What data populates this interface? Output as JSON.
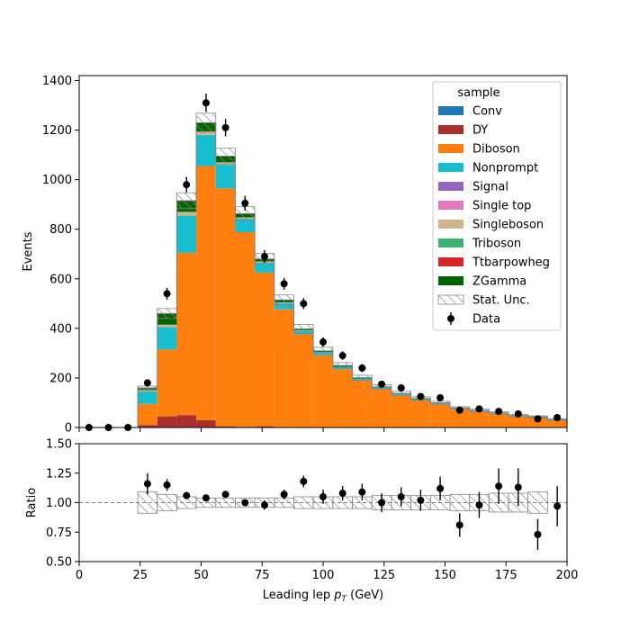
{
  "chart_data": [
    {
      "type": "stacked-histogram",
      "role": "main",
      "ylabel": "Events",
      "xlim": [
        0,
        200
      ],
      "ylim": [
        0,
        1420
      ],
      "x_ticks": [
        0,
        25,
        50,
        75,
        100,
        125,
        150,
        175,
        200
      ],
      "y_ticks": [
        0,
        200,
        400,
        600,
        800,
        1000,
        1200,
        1400
      ],
      "bin_edges": [
        0,
        8,
        16,
        24,
        32,
        40,
        48,
        56,
        64,
        72,
        80,
        88,
        96,
        104,
        112,
        120,
        128,
        136,
        144,
        152,
        160,
        168,
        176,
        184,
        192,
        200
      ],
      "legend": {
        "title": "sample",
        "position": "top-right"
      },
      "stack": [
        {
          "name": "Conv",
          "color": "#1f77b4",
          "values": [
            0,
            0,
            0,
            0,
            0,
            0,
            0,
            0,
            0,
            0,
            0,
            0,
            0,
            0,
            0,
            0,
            0,
            0,
            0,
            0,
            0,
            0,
            0,
            0,
            0
          ]
        },
        {
          "name": "DY",
          "color": "#aa2e2e",
          "values": [
            0,
            0,
            0,
            10,
            45,
            50,
            30,
            5,
            3,
            5,
            2,
            1,
            1,
            0,
            0,
            0,
            0,
            0,
            0,
            0,
            0,
            0,
            0,
            0,
            0
          ]
        },
        {
          "name": "Diboson",
          "color": "#ff7f0e",
          "values": [
            0,
            0,
            0,
            85,
            270,
            655,
            1025,
            960,
            785,
            620,
            475,
            375,
            290,
            235,
            190,
            155,
            130,
            110,
            95,
            75,
            65,
            55,
            45,
            40,
            30
          ]
        },
        {
          "name": "Nonprompt",
          "color": "#17becf",
          "values": [
            0,
            0,
            0,
            50,
            90,
            150,
            125,
            95,
            55,
            40,
            25,
            15,
            12,
            10,
            8,
            7,
            6,
            5,
            4,
            3,
            3,
            3,
            2,
            2,
            2
          ]
        },
        {
          "name": "Signal",
          "color": "#9467bd",
          "values": [
            0,
            0,
            0,
            0,
            0,
            0,
            0,
            0,
            0,
            0,
            0,
            0,
            0,
            0,
            0,
            0,
            0,
            0,
            0,
            0,
            0,
            0,
            0,
            0,
            0
          ]
        },
        {
          "name": "Single top",
          "color": "#e377c2",
          "values": [
            0,
            0,
            0,
            0,
            0,
            0,
            0,
            0,
            0,
            0,
            0,
            0,
            0,
            0,
            0,
            0,
            0,
            0,
            0,
            0,
            0,
            0,
            0,
            0,
            0
          ]
        },
        {
          "name": "Singleboson",
          "color": "#d2b48c",
          "values": [
            0,
            0,
            0,
            5,
            10,
            15,
            15,
            10,
            5,
            5,
            3,
            2,
            1,
            0,
            0,
            0,
            0,
            0,
            0,
            0,
            0,
            0,
            0,
            0,
            0
          ]
        },
        {
          "name": "Triboson",
          "color": "#3cb371",
          "values": [
            0,
            0,
            0,
            0,
            0,
            0,
            0,
            0,
            0,
            0,
            0,
            0,
            0,
            0,
            0,
            0,
            0,
            0,
            0,
            0,
            0,
            0,
            0,
            0,
            0
          ]
        },
        {
          "name": "Ttbarpowheg",
          "color": "#d62728",
          "values": [
            0,
            0,
            0,
            0,
            0,
            0,
            0,
            0,
            0,
            0,
            0,
            0,
            0,
            0,
            0,
            0,
            0,
            0,
            0,
            0,
            0,
            0,
            0,
            0,
            0
          ]
        },
        {
          "name": "ZGamma",
          "color": "#006400",
          "values": [
            0,
            0,
            0,
            10,
            45,
            45,
            35,
            25,
            15,
            10,
            10,
            5,
            5,
            5,
            3,
            2,
            2,
            2,
            1,
            1,
            1,
            1,
            1,
            1,
            0
          ]
        }
      ],
      "stat_unc": {
        "name": "Stat. Unc.",
        "half_width": [
          0,
          0,
          0,
          7,
          20,
          32,
          38,
          32,
          28,
          22,
          20,
          18,
          15,
          12,
          10,
          9,
          8,
          7,
          6,
          5,
          5,
          5,
          5,
          4,
          4
        ]
      },
      "data": {
        "name": "Data",
        "x": [
          4,
          12,
          20,
          28,
          36,
          44,
          52,
          60,
          68,
          76,
          84,
          92,
          100,
          108,
          116,
          124,
          132,
          140,
          148,
          156,
          164,
          172,
          180,
          188,
          196
        ],
        "y": [
          0,
          0,
          0,
          180,
          540,
          980,
          1310,
          1210,
          905,
          690,
          580,
          500,
          345,
          290,
          240,
          175,
          160,
          125,
          120,
          70,
          75,
          65,
          55,
          35,
          40
        ],
        "err": [
          0,
          0,
          0,
          14,
          24,
          31,
          37,
          35,
          30,
          26,
          24,
          22,
          19,
          17,
          16,
          13,
          13,
          11,
          11,
          8,
          9,
          8,
          7,
          6,
          6
        ]
      }
    },
    {
      "type": "ratio",
      "role": "ratio",
      "xlabel_prefix": "Leading lep ",
      "xlabel_var": "p",
      "xlabel_sub": "T",
      "xlabel_suffix": " (GeV)",
      "ylabel": "Ratio",
      "xlim": [
        0,
        200
      ],
      "ylim": [
        0.5,
        1.5
      ],
      "x_ticks": [
        0,
        25,
        50,
        75,
        100,
        125,
        150,
        175,
        200
      ],
      "y_ticks": [
        "0.50",
        "0.75",
        "1.00",
        "1.25",
        "1.50"
      ],
      "reference_line": 1.0,
      "unc_band_half_width": [
        0,
        0,
        0,
        0.09,
        0.07,
        0.05,
        0.04,
        0.04,
        0.04,
        0.04,
        0.04,
        0.05,
        0.05,
        0.05,
        0.05,
        0.06,
        0.06,
        0.06,
        0.06,
        0.07,
        0.07,
        0.08,
        0.08,
        0.09,
        0
      ],
      "points": {
        "x": [
          28,
          36,
          44,
          52,
          60,
          68,
          76,
          84,
          92,
          100,
          108,
          116,
          124,
          132,
          140,
          148,
          156,
          164,
          172,
          180,
          188,
          196
        ],
        "y": [
          1.16,
          1.15,
          1.06,
          1.04,
          1.07,
          1.0,
          0.98,
          1.07,
          1.18,
          1.05,
          1.08,
          1.09,
          1.0,
          1.05,
          1.02,
          1.12,
          0.81,
          0.98,
          1.14,
          1.13,
          0.73,
          0.97
        ],
        "err": [
          0.09,
          0.05,
          0.03,
          0.03,
          0.03,
          0.03,
          0.04,
          0.04,
          0.05,
          0.06,
          0.06,
          0.07,
          0.08,
          0.08,
          0.09,
          0.1,
          0.1,
          0.11,
          0.15,
          0.16,
          0.13,
          0.17
        ]
      }
    }
  ]
}
